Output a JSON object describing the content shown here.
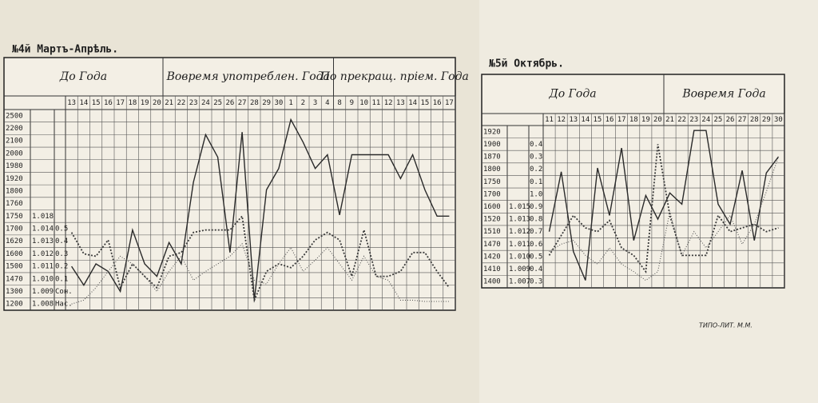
{
  "chart_data": [
    {
      "type": "line",
      "title": "№4й Мартъ-Апрѣль.",
      "header_sections": [
        "До Года",
        "Вовремя употреблен. Года",
        "По прекращ. пріем. Года"
      ],
      "categories": [
        "13",
        "14",
        "15",
        "16",
        "17",
        "18",
        "19",
        "20",
        "21",
        "22",
        "23",
        "24",
        "25",
        "26",
        "27",
        "28",
        "29",
        "30",
        "1",
        "2",
        "3",
        "4",
        "8",
        "9",
        "10",
        "11",
        "12",
        "13",
        "14",
        "15",
        "16",
        "17"
      ],
      "row_labels": [
        [
          "2500",
          null,
          null
        ],
        [
          "2200",
          null,
          null
        ],
        [
          "2100",
          null,
          null
        ],
        [
          "2000",
          null,
          null
        ],
        [
          "1980",
          null,
          null
        ],
        [
          "1920",
          null,
          null
        ],
        [
          "1800",
          null,
          null
        ],
        [
          "1760",
          null,
          null
        ],
        [
          "1750",
          "1.018",
          null
        ],
        [
          "1700",
          "1.014",
          "0.5"
        ],
        [
          "1620",
          "1.013",
          "0.4"
        ],
        [
          "1600",
          "1.012",
          "0.3"
        ],
        [
          "1500",
          "1.011",
          "0.2"
        ],
        [
          "1470",
          "1.010",
          "0.1"
        ],
        [
          "1300",
          "1.009",
          "Сон."
        ],
        [
          "1200",
          "1.008",
          "Нас."
        ]
      ],
      "ylim": [
        0,
        16
      ],
      "series": [
        {
          "color": "#2a2a2a",
          "style": "solid",
          "values": [
            3.5,
            2.0,
            3.7,
            3.1,
            1.5,
            6.4,
            3.7,
            2.7,
            5.4,
            3.7,
            10.2,
            14.0,
            12.2,
            4.6,
            14.2,
            0.8,
            9.6,
            11.3,
            15.2,
            13.4,
            11.3,
            12.4,
            7.6,
            12.4,
            12.4,
            12.4,
            12.4,
            10.5,
            12.4,
            9.6,
            7.5,
            7.5
          ]
        },
        {
          "color": "#3a3a3a",
          "style": "dotted",
          "values": [
            6.2,
            4.5,
            4.3,
            5.6,
            1.8,
            3.7,
            2.7,
            1.8,
            4.3,
            4.6,
            6.2,
            6.4,
            6.4,
            6.4,
            7.5,
            0.8,
            3.1,
            3.7,
            3.4,
            4.3,
            5.6,
            6.2,
            5.6,
            2.7,
            6.4,
            2.7,
            2.7,
            3.1,
            4.6,
            4.6,
            3.1,
            1.8
          ]
        },
        {
          "color": "#555555",
          "style": "fine",
          "values": [
            0.5,
            0.8,
            1.8,
            3.1,
            4.3,
            3.7,
            2.7,
            1.5,
            3.1,
            4.3,
            2.4,
            3.1,
            3.7,
            4.3,
            5.3,
            2.4,
            2.1,
            3.7,
            5.0,
            3.1,
            4.0,
            5.0,
            3.7,
            2.4,
            4.3,
            2.7,
            2.4,
            0.8,
            0.8,
            0.7,
            0.7,
            0.7
          ]
        }
      ]
    },
    {
      "type": "line",
      "title": "№5й Октябрь.",
      "header_sections": [
        "До Года",
        "Вовремя Года"
      ],
      "categories": [
        "11",
        "12",
        "13",
        "14",
        "15",
        "16",
        "17",
        "18",
        "19",
        "20",
        "21",
        "22",
        "23",
        "24",
        "25",
        "26",
        "27",
        "28",
        "29",
        "30"
      ],
      "row_labels": [
        [
          "1920",
          null,
          null
        ],
        [
          "1900",
          null,
          "0.4"
        ],
        [
          "1870",
          null,
          "0.3"
        ],
        [
          "1800",
          null,
          "0.2"
        ],
        [
          "1750",
          null,
          "0.1"
        ],
        [
          "1700",
          null,
          "1.0"
        ],
        [
          "1600",
          "1.015",
          "0.9"
        ],
        [
          "1520",
          "1.013",
          "0.8"
        ],
        [
          "1510",
          "1.012",
          "0.7"
        ],
        [
          "1470",
          "1.011",
          "0.6"
        ],
        [
          "1420",
          "1.010",
          "0.5"
        ],
        [
          "1410",
          "1.009",
          "0.4"
        ],
        [
          "1400",
          "1.007",
          "0.3"
        ]
      ],
      "ylim": [
        0,
        13
      ],
      "series": [
        {
          "color": "#2a2a2a",
          "style": "solid",
          "values": [
            4.5,
            9.3,
            2.9,
            0.6,
            9.6,
            5.8,
            11.2,
            3.8,
            7.4,
            5.5,
            7.6,
            6.7,
            12.6,
            12.6,
            6.7,
            5.1,
            9.4,
            3.8,
            9.2,
            10.5
          ]
        },
        {
          "color": "#3a3a3a",
          "style": "dotted",
          "values": [
            2.6,
            4.2,
            5.8,
            4.8,
            4.5,
            5.4,
            3.2,
            2.6,
            1.3,
            11.5,
            5.8,
            2.6,
            2.6,
            2.6,
            5.8,
            4.5,
            4.8,
            5.1,
            4.5,
            4.8
          ]
        },
        {
          "color": "#555555",
          "style": "fine",
          "values": [
            2.9,
            3.5,
            3.8,
            2.6,
            1.9,
            3.2,
            1.9,
            1.3,
            0.6,
            1.3,
            6.1,
            2.6,
            4.5,
            3.2,
            4.5,
            5.8,
            3.5,
            5.1,
            7.7,
            10.5
          ]
        }
      ]
    }
  ],
  "footer": "ТИПО-ЛИТ. М.М."
}
